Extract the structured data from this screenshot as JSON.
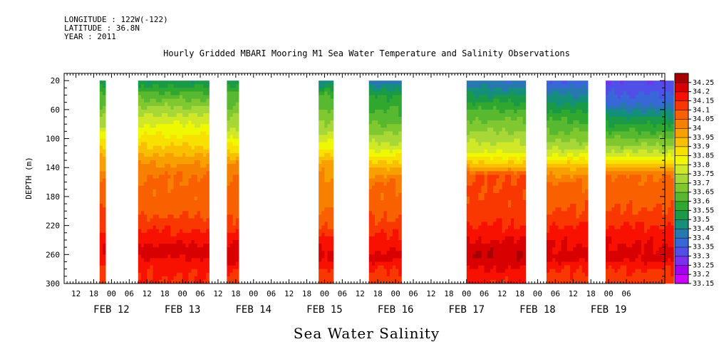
{
  "header": {
    "longitude": "LONGITUDE : 122W(-122)",
    "latitude": "LATITUDE : 36.8N",
    "year": "YEAR : 2011"
  },
  "title": "Hourly Gridded MBARI Mooring M1 Sea Water Temperature and Salinity Observations",
  "bottom_title": "Sea Water Salinity",
  "chart_data": {
    "type": "heatmap",
    "title": "Hourly Gridded MBARI Mooring M1 Sea Water Temperature and Salinity Observations",
    "variable": "Sea Water Salinity",
    "ylabel": "DEPTH (m)",
    "y_reversed": true,
    "ylim": [
      300,
      10
    ],
    "y_ticks": [
      20,
      60,
      100,
      140,
      180,
      220,
      260,
      300
    ],
    "x_range_hours": [
      8,
      211
    ],
    "x_hour_labels": [
      "12",
      "18",
      "00",
      "06",
      "12",
      "18",
      "00",
      "06",
      "12",
      "18",
      "00",
      "06",
      "12",
      "18",
      "00",
      "06",
      "12",
      "18",
      "00",
      "06",
      "12",
      "18",
      "00",
      "06",
      "12",
      "18",
      "00",
      "06",
      "12",
      "18",
      "00",
      "06"
    ],
    "x_date_labels": [
      "FEB 12",
      "FEB 13",
      "FEB 14",
      "FEB 15",
      "FEB 16",
      "FEB 17",
      "FEB 18",
      "FEB 19"
    ],
    "levels": [
      33.15,
      33.2,
      33.25,
      33.3,
      33.35,
      33.4,
      33.45,
      33.5,
      33.55,
      33.6,
      33.65,
      33.7,
      33.75,
      33.8,
      33.85,
      33.9,
      33.95,
      34,
      34.05,
      34.1,
      34.15,
      34.2,
      34.25
    ],
    "level_labels": [
      "33.15",
      "33.2",
      "33.25",
      "33.3",
      "33.35",
      "33.4",
      "33.45",
      "33.5",
      "33.55",
      "33.6",
      "33.65",
      "33.7",
      "33.75",
      "33.8",
      "33.85",
      "33.9",
      "33.95",
      "34",
      "34.05",
      "34.1",
      "34.15",
      "34.2",
      "34.25"
    ],
    "level_colors": [
      "#cc00ff",
      "#a000ee",
      "#7a30ee",
      "#5050e8",
      "#3868d8",
      "#2878b0",
      "#14907a",
      "#1a9a46",
      "#30a830",
      "#58b830",
      "#80c830",
      "#a8d838",
      "#d0e828",
      "#f0f800",
      "#f8e000",
      "#f8c000",
      "#f8a000",
      "#f88000",
      "#f86000",
      "#f83800",
      "#f81000",
      "#d80000",
      "#a80000"
    ],
    "segments": [
      {
        "start": 20,
        "end": 22,
        "profile": [
          [
            "20",
            33.5
          ],
          [
            "40",
            33.62
          ],
          [
            "80",
            33.72
          ],
          [
            "120",
            33.95
          ],
          [
            "160",
            34.05
          ],
          [
            "200",
            34.1
          ],
          [
            "230",
            34.15
          ],
          [
            "250",
            34.22
          ],
          [
            "280",
            34.12
          ],
          [
            "300",
            34.1
          ]
        ]
      },
      {
        "start": 33,
        "end": 57,
        "profile": [
          [
            "20",
            33.5
          ],
          [
            "40",
            33.62
          ],
          [
            "60",
            33.72
          ],
          [
            "80",
            33.8
          ],
          [
            "110",
            33.9
          ],
          [
            "130",
            33.98
          ],
          [
            "150",
            34.05
          ],
          [
            "200",
            34.08
          ],
          [
            "215",
            34.12
          ],
          [
            "240",
            34.18
          ],
          [
            "255",
            34.24
          ],
          [
            "270",
            34.18
          ],
          [
            "290",
            34.15
          ],
          [
            "300",
            34.15
          ]
        ]
      },
      {
        "start": 63,
        "end": 67,
        "profile": [
          [
            "20",
            33.52
          ],
          [
            "40",
            33.62
          ],
          [
            "80",
            33.72
          ],
          [
            "110",
            33.85
          ],
          [
            "130",
            33.98
          ],
          [
            "150",
            34.05
          ],
          [
            "200",
            34.08
          ],
          [
            "220",
            34.12
          ],
          [
            "245",
            34.2
          ],
          [
            "260",
            34.24
          ],
          [
            "280",
            34.16
          ],
          [
            "300",
            34.12
          ]
        ]
      },
      {
        "start": 94,
        "end": 99,
        "profile": [
          [
            "20",
            33.45
          ],
          [
            "40",
            33.6
          ],
          [
            "80",
            33.7
          ],
          [
            "110",
            33.82
          ],
          [
            "130",
            33.95
          ],
          [
            "150",
            34.0
          ],
          [
            "200",
            34.05
          ],
          [
            "220",
            34.1
          ],
          [
            "245",
            34.18
          ],
          [
            "260",
            34.22
          ],
          [
            "280",
            34.15
          ],
          [
            "300",
            34.12
          ]
        ]
      },
      {
        "start": 111,
        "end": 122,
        "profile": [
          [
            "20",
            33.4
          ],
          [
            "40",
            33.55
          ],
          [
            "70",
            33.62
          ],
          [
            "100",
            33.72
          ],
          [
            "120",
            33.82
          ],
          [
            "140",
            33.95
          ],
          [
            "160",
            34.05
          ],
          [
            "200",
            34.08
          ],
          [
            "220",
            34.12
          ],
          [
            "245",
            34.18
          ],
          [
            "265",
            34.22
          ],
          [
            "280",
            34.15
          ],
          [
            "300",
            34.12
          ]
        ]
      },
      {
        "start": 144,
        "end": 164,
        "profile": [
          [
            "20",
            33.4
          ],
          [
            "40",
            33.5
          ],
          [
            "60",
            33.6
          ],
          [
            "90",
            33.7
          ],
          [
            "120",
            33.8
          ],
          [
            "140",
            33.95
          ],
          [
            "150",
            34.1
          ],
          [
            "200",
            34.12
          ],
          [
            "220",
            34.15
          ],
          [
            "240",
            34.2
          ],
          [
            "260",
            34.25
          ],
          [
            "280",
            34.2
          ],
          [
            "300",
            34.15
          ]
        ]
      },
      {
        "start": 171,
        "end": 185,
        "profile": [
          [
            "20",
            33.35
          ],
          [
            "40",
            33.45
          ],
          [
            "70",
            33.58
          ],
          [
            "100",
            33.68
          ],
          [
            "120",
            33.78
          ],
          [
            "140",
            33.95
          ],
          [
            "160",
            34.05
          ],
          [
            "200",
            34.1
          ],
          [
            "220",
            34.15
          ],
          [
            "245",
            34.2
          ],
          [
            "265",
            34.22
          ],
          [
            "280",
            34.15
          ],
          [
            "300",
            34.12
          ]
        ]
      },
      {
        "start": 191,
        "end": 214,
        "profile": [
          [
            "20",
            33.3
          ],
          [
            "50",
            33.38
          ],
          [
            "70",
            33.5
          ],
          [
            "90",
            33.6
          ],
          [
            "110",
            33.7
          ],
          [
            "125",
            33.8
          ],
          [
            "150",
            34.05
          ],
          [
            "200",
            34.1
          ],
          [
            "220",
            34.15
          ],
          [
            "245",
            34.2
          ],
          [
            "265",
            34.22
          ],
          [
            "280",
            34.15
          ],
          [
            "300",
            34.12
          ]
        ]
      }
    ]
  }
}
